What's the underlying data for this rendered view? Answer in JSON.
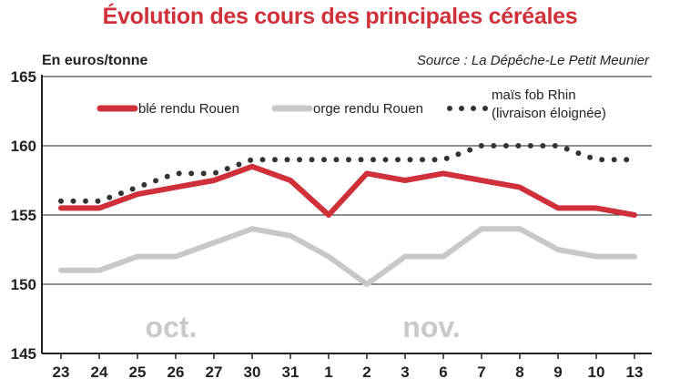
{
  "chart_data": {
    "type": "line",
    "title": "Évolution des cours des principales céréales",
    "ylabel": "En euros/tonne",
    "source": "Source : La Dépêche-Le Petit Meunier",
    "categories": [
      "23",
      "24",
      "25",
      "26",
      "27",
      "30",
      "31",
      "1",
      "2",
      "3",
      "6",
      "7",
      "8",
      "9",
      "10",
      "13"
    ],
    "month_labels": [
      "oct.",
      "nov."
    ],
    "ylim": [
      145,
      165
    ],
    "yticks": [
      165,
      160,
      155,
      150,
      145
    ],
    "grid": "horizontal",
    "legend_position": "top",
    "series": [
      {
        "name": "blé rendu Rouen",
        "color": "#d0303a",
        "style": "solid",
        "values": [
          155.5,
          155.5,
          156.5,
          157,
          157.5,
          158.5,
          157.5,
          155,
          158,
          157.5,
          158,
          157.5,
          157,
          155.5,
          155.5,
          155
        ]
      },
      {
        "name": "orge rendu Rouen",
        "color": "#c8c8c8",
        "style": "solid",
        "values": [
          151,
          151,
          152,
          152,
          153,
          154,
          153.5,
          152,
          150,
          152,
          152,
          154,
          154,
          152.5,
          152,
          152
        ]
      },
      {
        "name": "maïs fob Rhin (livraison éloignée)",
        "name_lines": [
          "maïs fob Rhin",
          "(livraison éloignée)"
        ],
        "color": "#333333",
        "style": "dotted",
        "values": [
          156,
          156,
          157,
          158,
          158,
          159,
          159,
          159,
          159,
          159,
          159,
          160,
          160,
          160,
          159,
          159
        ]
      }
    ]
  }
}
